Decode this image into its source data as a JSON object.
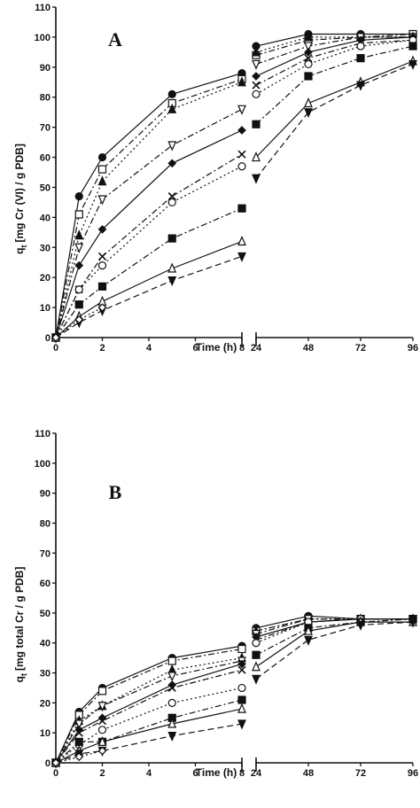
{
  "chart_data": [
    {
      "type": "line",
      "panel_label": "A",
      "ylabel": "q",
      "ylabel_sub": "t",
      "ylabel_rest": "[mg Cr (VI) / g PDB]",
      "xlabel": "Time (h)",
      "ylim": [
        0,
        110
      ],
      "yticks": [
        "0",
        "10",
        "20",
        "30",
        "40",
        "50",
        "60",
        "70",
        "80",
        "90",
        "100",
        "110"
      ],
      "x_segments": [
        {
          "range": [
            0,
            8
          ],
          "ticks": [
            "0",
            "2",
            "4",
            "6",
            "8"
          ]
        },
        {
          "range": [
            24,
            96
          ],
          "ticks": [
            "24",
            "48",
            "72",
            "96"
          ]
        }
      ],
      "marker_color": "#111111",
      "series": [
        {
          "marker": "circle-filled",
          "dash": "solid",
          "x": [
            0,
            1,
            2,
            5,
            8,
            24,
            48,
            72,
            96
          ],
          "y": [
            0,
            47,
            60,
            81,
            88,
            97,
            101,
            101,
            101
          ]
        },
        {
          "marker": "square-open",
          "dash": "dashdot",
          "x": [
            0,
            1,
            2,
            5,
            8,
            24,
            48,
            72,
            96
          ],
          "y": [
            0,
            41,
            56,
            78,
            86,
            94,
            99,
            100,
            101
          ]
        },
        {
          "marker": "triangle-up-filled",
          "dash": "dot",
          "x": [
            0,
            1,
            2,
            5,
            8,
            24,
            48,
            72,
            96
          ],
          "y": [
            0,
            34,
            52,
            76,
            85,
            95,
            100,
            100,
            100
          ]
        },
        {
          "marker": "triangle-down-open",
          "dash": "dashdot",
          "x": [
            0,
            1,
            2,
            5,
            8,
            24,
            48,
            72,
            96
          ],
          "y": [
            0,
            30,
            46,
            64,
            76,
            91,
            97,
            100,
            100
          ]
        },
        {
          "marker": "diamond-filled",
          "dash": "solid",
          "x": [
            0,
            1,
            2,
            5,
            8,
            24,
            48,
            72,
            96
          ],
          "y": [
            0,
            24,
            36,
            58,
            69,
            87,
            95,
            99,
            100
          ]
        },
        {
          "marker": "cross",
          "dash": "dashdot",
          "x": [
            0,
            1,
            2,
            5,
            8,
            24,
            48,
            72,
            96
          ],
          "y": [
            0,
            16,
            27,
            47,
            61,
            84,
            93,
            98,
            99
          ]
        },
        {
          "marker": "circle-open",
          "dash": "dot",
          "x": [
            0,
            1,
            2,
            5,
            8,
            24,
            48,
            72,
            96
          ],
          "y": [
            0,
            16,
            24,
            45,
            57,
            81,
            91,
            97,
            99
          ]
        },
        {
          "marker": "square-filled",
          "dash": "dashdot",
          "x": [
            0,
            1,
            2,
            5,
            8,
            24,
            48,
            72,
            96
          ],
          "y": [
            0,
            11,
            17,
            33,
            43,
            71,
            87,
            93,
            97
          ]
        },
        {
          "marker": "triangle-up-open",
          "dash": "solid",
          "x": [
            0,
            1,
            2,
            5,
            8,
            24,
            48,
            72,
            96
          ],
          "y": [
            0,
            7,
            12,
            23,
            32,
            60,
            78,
            85,
            92
          ]
        },
        {
          "marker": "triangle-down-filled",
          "dash": "dashed",
          "x": [
            0,
            1,
            2,
            5,
            8,
            24,
            48,
            72,
            96
          ],
          "y": [
            0,
            5,
            9,
            19,
            27,
            53,
            75,
            84,
            91
          ]
        },
        {
          "marker": "diamond-open",
          "dash": "dot",
          "x": [
            0,
            1,
            2
          ],
          "y": [
            0,
            6,
            10
          ]
        }
      ]
    },
    {
      "type": "line",
      "panel_label": "B",
      "ylabel": "q",
      "ylabel_sub": "t",
      "ylabel_rest": "[mg total Cr / g PDB]",
      "xlabel": "Time (h)",
      "ylim": [
        0,
        110
      ],
      "yticks": [
        "0",
        "10",
        "20",
        "30",
        "40",
        "50",
        "60",
        "70",
        "80",
        "90",
        "100",
        "110"
      ],
      "x_segments": [
        {
          "range": [
            0,
            8
          ],
          "ticks": [
            "0",
            "2",
            "4",
            "6",
            "8"
          ]
        },
        {
          "range": [
            24,
            96
          ],
          "ticks": [
            "24",
            "48",
            "72",
            "96"
          ]
        }
      ],
      "marker_color": "#111111",
      "series": [
        {
          "marker": "circle-filled",
          "dash": "solid",
          "x": [
            0,
            1,
            2,
            5,
            8,
            24,
            48,
            72,
            96
          ],
          "y": [
            0,
            17,
            25,
            35,
            39,
            45,
            49,
            48,
            48
          ]
        },
        {
          "marker": "square-open",
          "dash": "dashdot",
          "x": [
            0,
            1,
            2,
            5,
            8,
            24,
            48,
            72,
            96
          ],
          "y": [
            0,
            16,
            24,
            34,
            38,
            44,
            48,
            48,
            48
          ]
        },
        {
          "marker": "triangle-up-filled",
          "dash": "dot",
          "x": [
            0,
            1,
            2,
            5,
            8,
            24,
            48,
            72,
            96
          ],
          "y": [
            0,
            14,
            19,
            31,
            35,
            44,
            48,
            48,
            48
          ]
        },
        {
          "marker": "triangle-down-open",
          "dash": "dashdot",
          "x": [
            0,
            1,
            2,
            5,
            8,
            24,
            48,
            72,
            96
          ],
          "y": [
            0,
            13,
            19,
            29,
            34,
            43,
            48,
            48,
            48
          ]
        },
        {
          "marker": "diamond-filled",
          "dash": "solid",
          "x": [
            0,
            1,
            2,
            5,
            8,
            24,
            48,
            72,
            96
          ],
          "y": [
            0,
            11,
            15,
            26,
            33,
            42,
            47,
            48,
            48
          ]
        },
        {
          "marker": "cross",
          "dash": "dashdot",
          "x": [
            0,
            1,
            2,
            5,
            8,
            24,
            48,
            72,
            96
          ],
          "y": [
            0,
            10,
            14,
            25,
            31,
            41,
            47,
            48,
            48
          ]
        },
        {
          "marker": "circle-open",
          "dash": "dot",
          "x": [
            0,
            1,
            2,
            5,
            8,
            24,
            48,
            72,
            96
          ],
          "y": [
            0,
            6,
            11,
            20,
            25,
            40,
            47,
            48,
            48
          ]
        },
        {
          "marker": "square-filled",
          "dash": "dashdot",
          "x": [
            0,
            1,
            2,
            5,
            8,
            24,
            48,
            72,
            96
          ],
          "y": [
            0,
            7,
            7,
            15,
            21,
            36,
            45,
            47,
            48
          ]
        },
        {
          "marker": "triangle-up-open",
          "dash": "solid",
          "x": [
            0,
            1,
            2,
            5,
            8,
            24,
            48,
            72,
            96
          ],
          "y": [
            0,
            4,
            7,
            13,
            18,
            32,
            44,
            47,
            47
          ]
        },
        {
          "marker": "triangle-down-filled",
          "dash": "dashed",
          "x": [
            0,
            1,
            2,
            5,
            8,
            24,
            48,
            72,
            96
          ],
          "y": [
            0,
            3,
            4,
            9,
            13,
            28,
            41,
            46,
            47
          ]
        },
        {
          "marker": "diamond-open",
          "dash": "dot",
          "x": [
            0,
            1,
            2
          ],
          "y": [
            0,
            2,
            4
          ]
        }
      ]
    }
  ]
}
